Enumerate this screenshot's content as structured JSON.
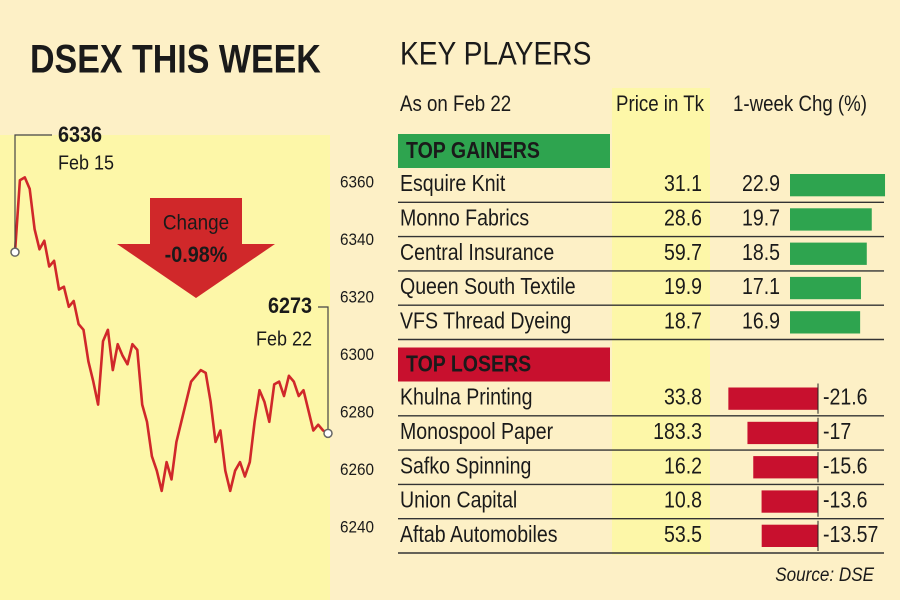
{
  "chart_data": {
    "type": "line",
    "title": "DSEX THIS WEEK",
    "values": [
      6336,
      6361,
      6362,
      6358,
      6344,
      6337,
      6340,
      6331,
      6333,
      6323,
      6324,
      6317,
      6319,
      6311,
      6309,
      6298,
      6291,
      6283,
      6305,
      6309,
      6295,
      6304,
      6300,
      6297,
      6304,
      6302,
      6283,
      6277,
      6265,
      6260,
      6253,
      6263,
      6257,
      6270,
      6277,
      6284,
      6291,
      6293,
      6295,
      6294,
      6284,
      6270,
      6274,
      6260,
      6253,
      6260,
      6263,
      6258,
      6263,
      6277,
      6288,
      6284,
      6277,
      6290,
      6291,
      6286,
      6293,
      6291,
      6286,
      6288,
      6281,
      6274,
      6276,
      6274,
      6273
    ],
    "color": "#d0282a",
    "ylim": [
      6230,
      6375
    ],
    "yticks": [
      6240,
      6260,
      6280,
      6300,
      6320,
      6340,
      6360
    ],
    "annotations": {
      "start_date": "Feb 15",
      "end_date": "Feb 22",
      "change_label": "Change",
      "change_value": "-0.98%"
    }
  },
  "table": {
    "title": "KEY PLAYERS",
    "headers": [
      "As on Feb 22",
      "Price in Tk",
      "1-week Chg (%)"
    ],
    "sections": [
      {
        "name": "TOP GAINERS",
        "color": "#2ea44f",
        "rows": [
          {
            "company": "Esquire Knit",
            "price": 31.1,
            "change": 22.9
          },
          {
            "company": "Monno Fabrics",
            "price": 28.6,
            "change": 19.7
          },
          {
            "company": "Central Insurance",
            "price": 59.7,
            "change": 18.5
          },
          {
            "company": "Queen South Textile",
            "price": 19.9,
            "change": 17.1
          },
          {
            "company": "VFS Thread Dyeing",
            "price": 18.7,
            "change": 16.9
          }
        ]
      },
      {
        "name": "TOP LOSERS",
        "color": "#c8102e",
        "rows": [
          {
            "company": "Khulna Printing",
            "price": 33.8,
            "change": -21.6
          },
          {
            "company": "Monospool Paper",
            "price": 183.3,
            "change": -17
          },
          {
            "company": "Safko Spinning",
            "price": 16.2,
            "change": -15.6
          },
          {
            "company": "Union Capital",
            "price": 10.8,
            "change": -13.6
          },
          {
            "company": "Aftab Automobiles",
            "price": 53.5,
            "change": -13.57
          }
        ]
      }
    ]
  },
  "source": "Source: DSE"
}
